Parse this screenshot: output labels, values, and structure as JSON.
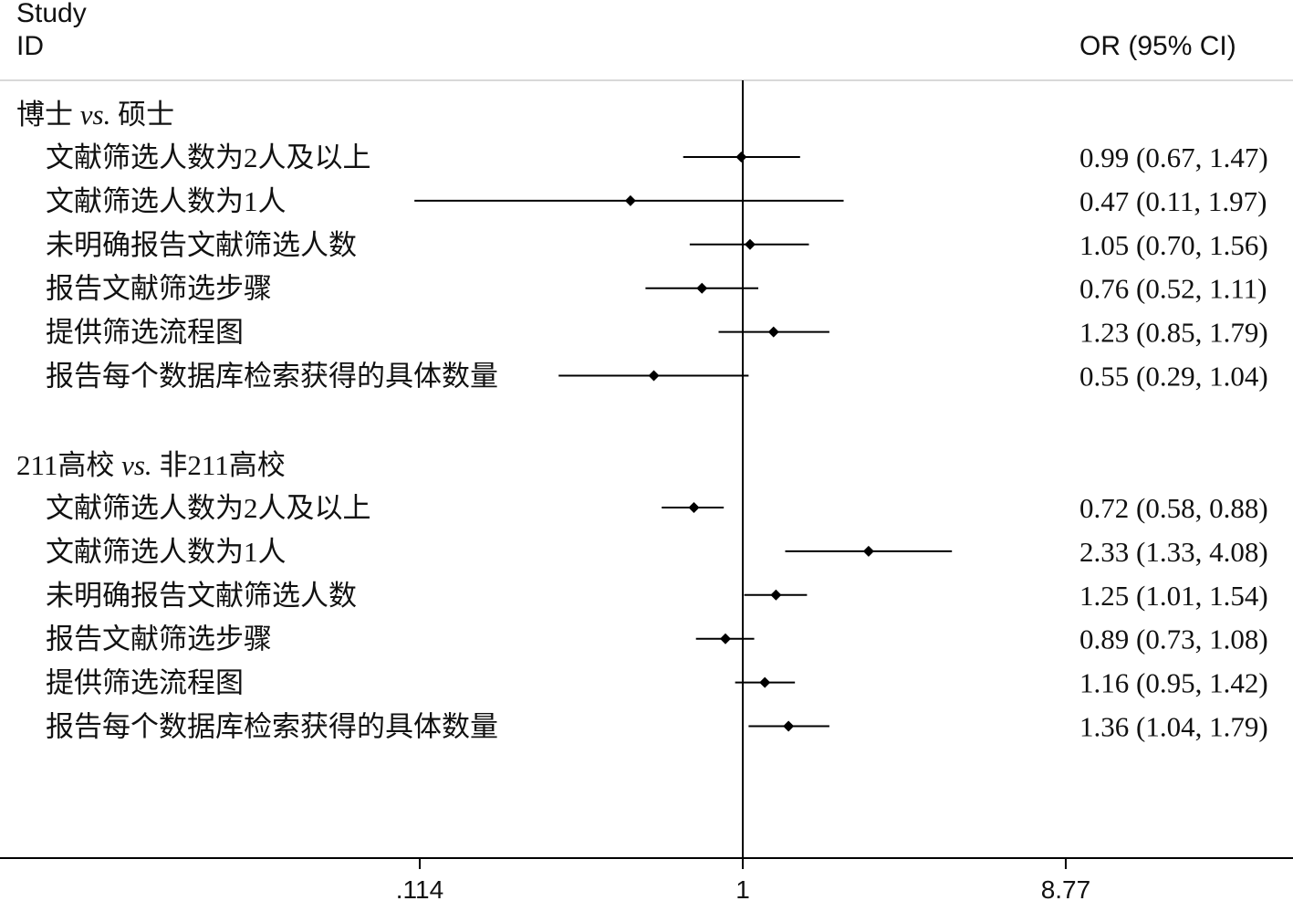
{
  "header": {
    "study_label_line1": "Study",
    "study_label_line2": "ID",
    "estimate_label": "OR (95% CI)"
  },
  "chart_data": {
    "type": "forest",
    "measure": "OR (95% CI)",
    "scale": "log",
    "null_value": 1,
    "xticks": [
      ".114",
      "1",
      "8.77"
    ],
    "xtick_values": [
      0.114,
      1,
      8.77
    ],
    "groups": [
      {
        "title_before": "博士 ",
        "title_vs": "vs.",
        "title_after": " 硕士",
        "rows": [
          {
            "label": "文献筛选人数为2人及以上",
            "or": 0.99,
            "lo": 0.67,
            "hi": 1.47,
            "text": "0.99 (0.67, 1.47)"
          },
          {
            "label": "文献筛选人数为1人",
            "or": 0.47,
            "lo": 0.11,
            "hi": 1.97,
            "text": "0.47 (0.11, 1.97)"
          },
          {
            "label": "未明确报告文献筛选人数",
            "or": 1.05,
            "lo": 0.7,
            "hi": 1.56,
            "text": "1.05 (0.70, 1.56)"
          },
          {
            "label": "报告文献筛选步骤",
            "or": 0.76,
            "lo": 0.52,
            "hi": 1.11,
            "text": "0.76 (0.52, 1.11)"
          },
          {
            "label": "提供筛选流程图",
            "or": 1.23,
            "lo": 0.85,
            "hi": 1.79,
            "text": "1.23 (0.85, 1.79)"
          },
          {
            "label": "报告每个数据库检索获得的具体数量",
            "or": 0.55,
            "lo": 0.29,
            "hi": 1.04,
            "text": "0.55 (0.29, 1.04)"
          }
        ]
      },
      {
        "title_before": "211高校 ",
        "title_vs": "vs.",
        "title_after": " 非211高校",
        "rows": [
          {
            "label": "文献筛选人数为2人及以上",
            "or": 0.72,
            "lo": 0.58,
            "hi": 0.88,
            "text": "0.72 (0.58, 0.88)"
          },
          {
            "label": "文献筛选人数为1人",
            "or": 2.33,
            "lo": 1.33,
            "hi": 4.08,
            "text": "2.33 (1.33, 4.08)"
          },
          {
            "label": "未明确报告文献筛选人数",
            "or": 1.25,
            "lo": 1.01,
            "hi": 1.54,
            "text": "1.25 (1.01, 1.54)"
          },
          {
            "label": "报告文献筛选步骤",
            "or": 0.89,
            "lo": 0.73,
            "hi": 1.08,
            "text": "0.89 (0.73, 1.08)"
          },
          {
            "label": "提供筛选流程图",
            "or": 1.16,
            "lo": 0.95,
            "hi": 1.42,
            "text": "1.16 (0.95, 1.42)"
          },
          {
            "label": "报告每个数据库检索获得的具体数量",
            "or": 1.36,
            "lo": 1.04,
            "hi": 1.79,
            "text": "1.36 (1.04, 1.79)"
          }
        ]
      }
    ]
  }
}
